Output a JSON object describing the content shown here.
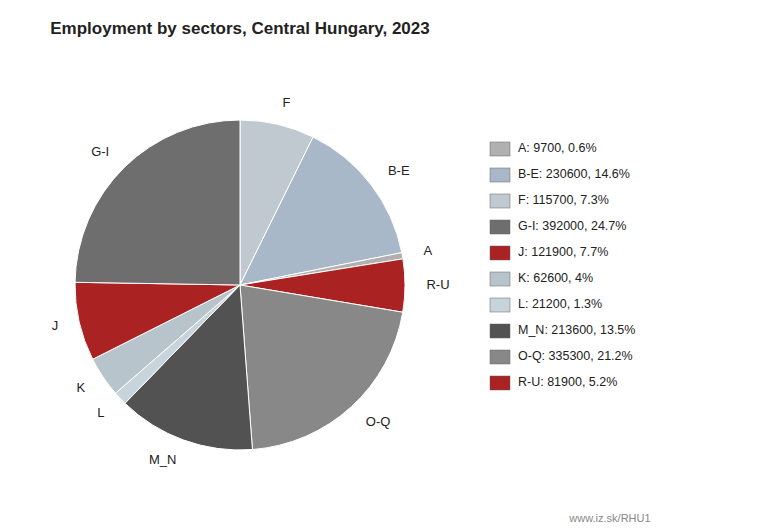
{
  "chart_data": {
    "type": "pie",
    "title": "Employment by sectors, Central Hungary, 2023",
    "categories": [
      "F",
      "B-E",
      "A",
      "R-U",
      "O-Q",
      "M_N",
      "L",
      "K",
      "J",
      "G-I"
    ],
    "values": [
      115700,
      230600,
      9700,
      81900,
      335300,
      213600,
      21200,
      62600,
      121900,
      392000
    ],
    "colors": [
      "#c0c8d0",
      "#a8b8c8",
      "#b0b0b0",
      "#aa2222",
      "#888888",
      "#525252",
      "#c8d4dc",
      "#b8c4cc",
      "#aa2222",
      "#6e6e6e"
    ],
    "legend": "right",
    "legend_entries": [
      {
        "label": "A: 9700, 0.6%",
        "color": "#b0b0b0"
      },
      {
        "label": "B-E: 230600, 14.6%",
        "color": "#a8b8c8"
      },
      {
        "label": "F: 115700, 7.3%",
        "color": "#c0c8d0"
      },
      {
        "label": "G-I: 392000, 24.7%",
        "color": "#6e6e6e"
      },
      {
        "label": "J: 121900, 7.7%",
        "color": "#aa2222"
      },
      {
        "label": "K: 62600, 4%",
        "color": "#b8c4cc"
      },
      {
        "label": "L: 21200, 1.3%",
        "color": "#c8d4dc"
      },
      {
        "label": "M_N: 213600, 13.5%",
        "color": "#525252"
      },
      {
        "label": "O-Q: 335300, 21.2%",
        "color": "#888888"
      },
      {
        "label": "R-U: 81900, 5.2%",
        "color": "#aa2222"
      }
    ],
    "watermark": "www.iz.sk/RHU1"
  }
}
